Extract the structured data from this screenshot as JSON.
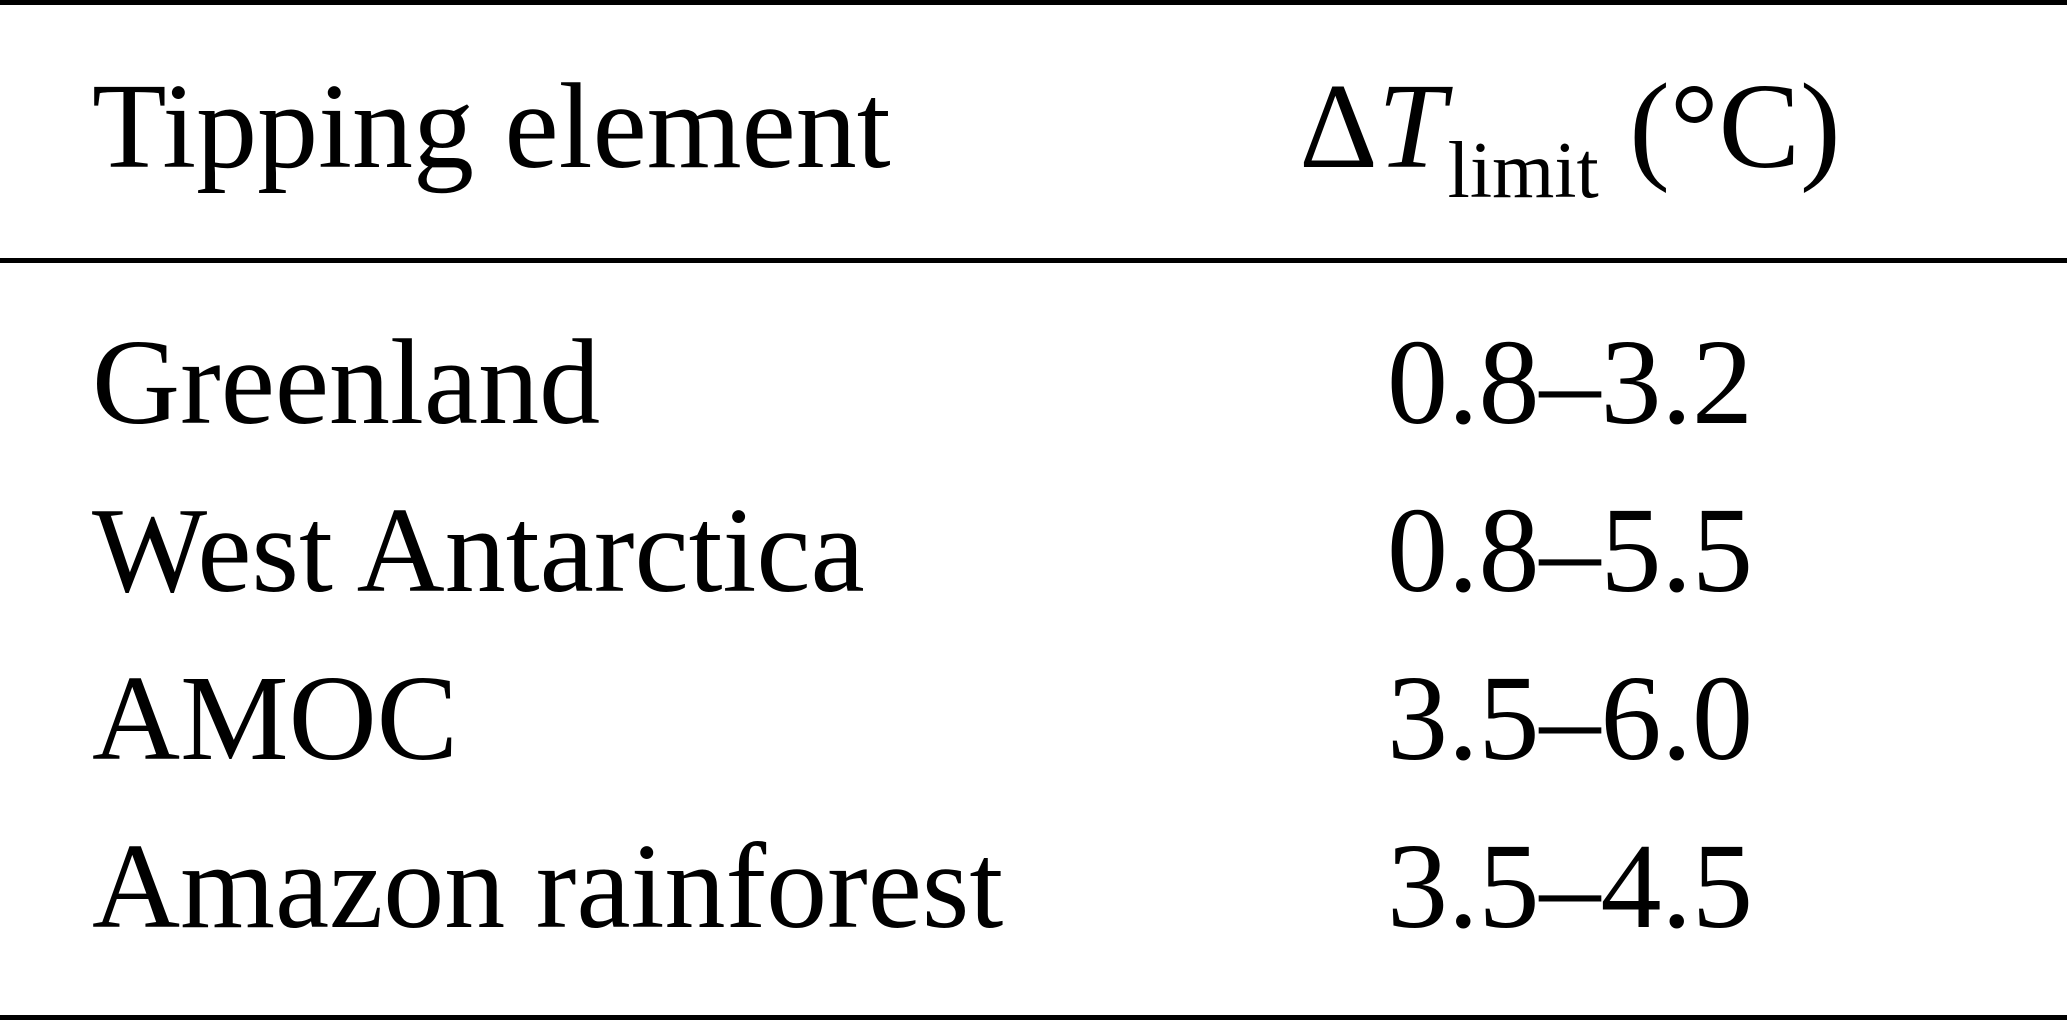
{
  "table": {
    "header": {
      "element": "Tipping element",
      "threshold": {
        "symbol": "Δ",
        "variable": "T",
        "subscript": "limit",
        "unit": " (°C)"
      }
    },
    "rows": [
      {
        "element": "Greenland",
        "range": "0.8–3.2"
      },
      {
        "element": "West Antarctica",
        "range": "0.8–5.5"
      },
      {
        "element": "AMOC",
        "range": "3.5–6.0"
      },
      {
        "element": "Amazon rainforest",
        "range": "3.5–4.5"
      }
    ]
  }
}
